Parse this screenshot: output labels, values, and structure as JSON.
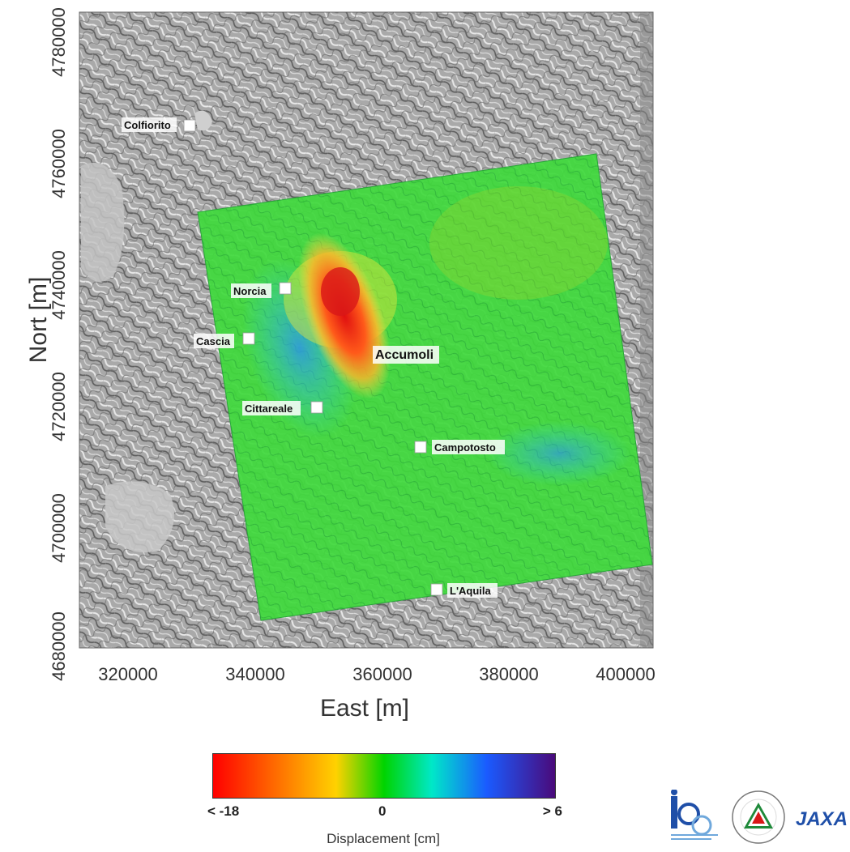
{
  "map": {
    "x_ticks": [
      "320000",
      "340000",
      "360000",
      "380000",
      "400000"
    ],
    "y_ticks": [
      "4780000",
      "4760000",
      "4740000",
      "4720000",
      "4700000",
      "4680000"
    ],
    "x_title": "East [m]",
    "y_title": "Nort [m]",
    "places": [
      {
        "name": "Colfiorito",
        "bold": false
      },
      {
        "name": "Norcia",
        "bold": false
      },
      {
        "name": "Cascia",
        "bold": false
      },
      {
        "name": "Accumoli",
        "bold": true
      },
      {
        "name": "Cittareale",
        "bold": false
      },
      {
        "name": "Campotosto",
        "bold": false
      },
      {
        "name": "L'Aquila",
        "bold": false
      }
    ]
  },
  "colorbar": {
    "min_label": "< -18",
    "mid_label": "0",
    "max_label": "> 6",
    "title": "Displacement [cm]",
    "colors": [
      "#ff0000",
      "#ffd200",
      "#00d400",
      "#00e8c8",
      "#1a5bff",
      "#4a0a7a"
    ]
  },
  "logos": {
    "irea_text": "irea",
    "protezione_text": "PROTEZIONE CIVILE NAZIONALE",
    "jaxa_text": "JAXA"
  }
}
